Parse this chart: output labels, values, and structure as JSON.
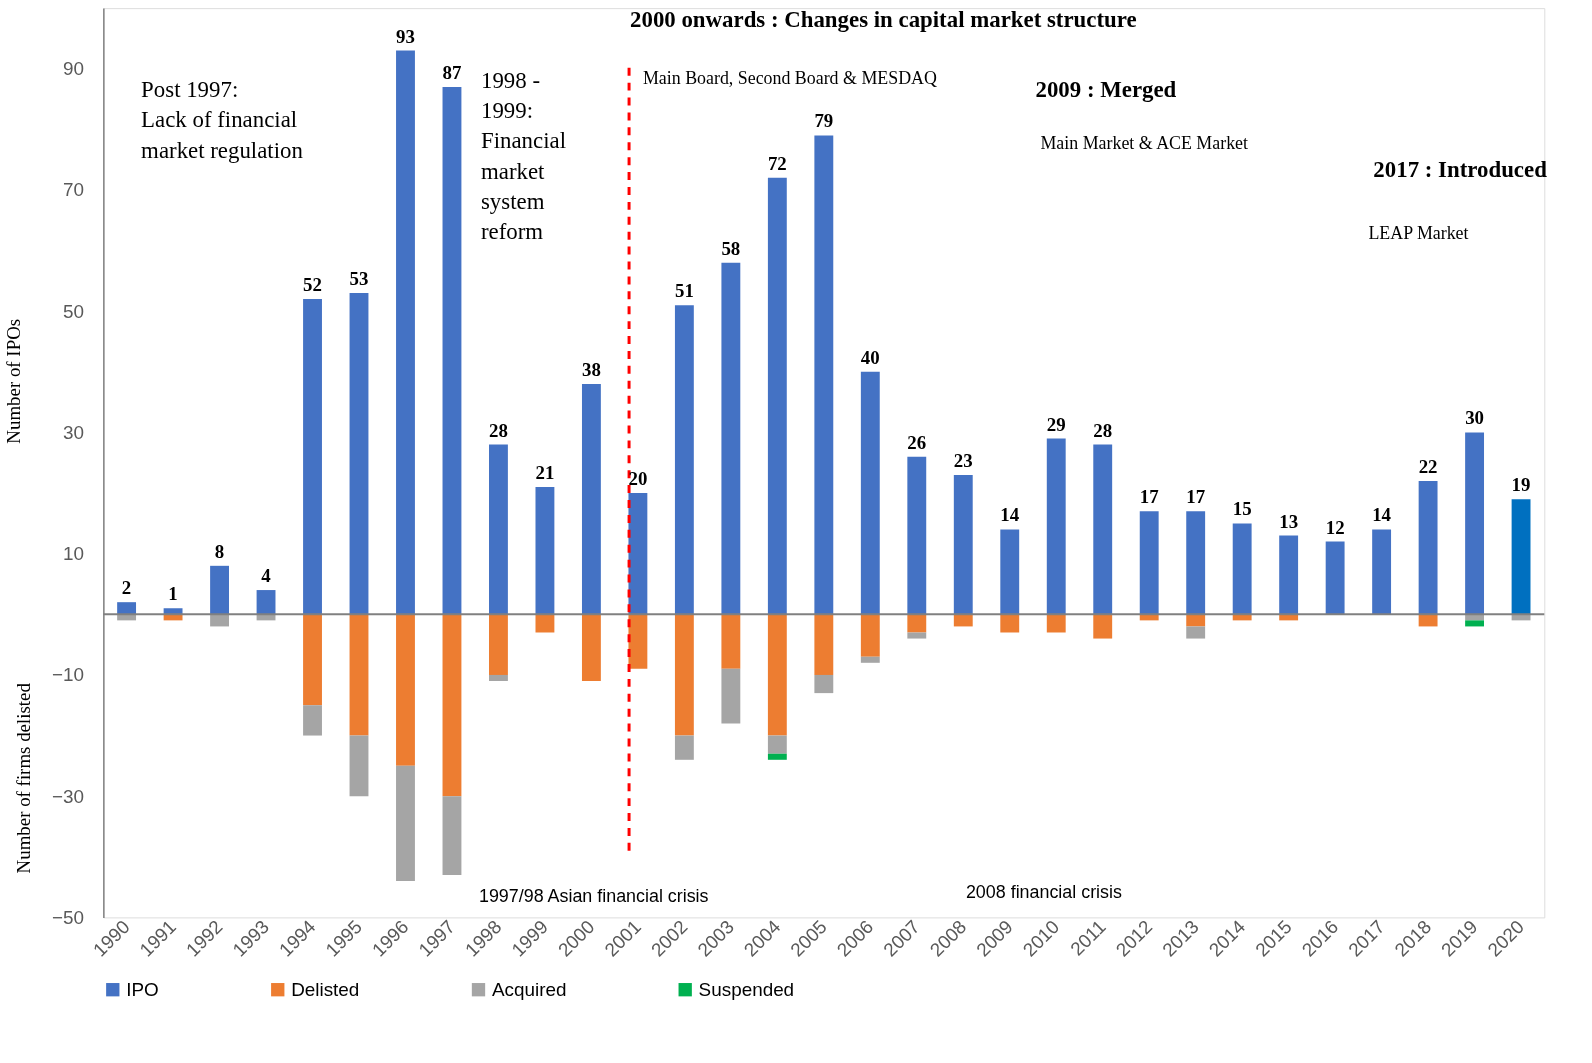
{
  "chart_data": {
    "type": "bar",
    "stacked": true,
    "legend": "bottom",
    "grid": false,
    "ylabel": "Number of IPOs",
    "categories": [
      "1990",
      "1991",
      "1992",
      "1993",
      "1994",
      "1995",
      "1996",
      "1997",
      "1998",
      "1999",
      "2000",
      "2001",
      "2002",
      "2003",
      "2004",
      "2005",
      "2006",
      "2007",
      "2008",
      "2009",
      "2010",
      "2011",
      "2012",
      "2013",
      "2014",
      "2015",
      "2016",
      "2017",
      "2018",
      "2019",
      "2020"
    ],
    "ylim": [
      -50,
      100
    ],
    "yticks": [
      -50,
      -30,
      -10,
      10,
      30,
      50,
      70,
      90
    ],
    "series": [
      {
        "name": "IPO",
        "color": "#4472c4",
        "colors": [
          "#4472c4",
          "#4472c4",
          "#4472c4",
          "#4472c4",
          "#4472c4",
          "#4472c4",
          "#4472c4",
          "#4472c4",
          "#4472c4",
          "#4472c4",
          "#4472c4",
          "#4472c4",
          "#4472c4",
          "#4472c4",
          "#4472c4",
          "#4472c4",
          "#4472c4",
          "#4472c4",
          "#4472c4",
          "#4472c4",
          "#4472c4",
          "#4472c4",
          "#4472c4",
          "#4472c4",
          "#4472c4",
          "#4472c4",
          "#4472c4",
          "#4472c4",
          "#4472c4",
          "#4472c4",
          "#0070c0"
        ],
        "values": [
          2,
          1,
          8,
          4,
          52,
          53,
          93,
          87,
          28,
          21,
          38,
          20,
          51,
          58,
          72,
          79,
          40,
          26,
          23,
          14,
          29,
          28,
          17,
          17,
          15,
          13,
          12,
          14,
          22,
          30,
          19
        ],
        "value_labels": [
          "2",
          "1",
          "8",
          "4",
          "52",
          "53",
          "93",
          "87",
          "28",
          "21",
          "38",
          "20",
          "51",
          "58",
          "72",
          "79",
          "40",
          "26",
          "23",
          "14",
          "29",
          "28",
          "17",
          "17",
          "15",
          "13",
          "12",
          "14",
          "22",
          "30",
          "19"
        ]
      },
      {
        "name": "Delisted",
        "color": "#ed7d31",
        "values": [
          null,
          -1,
          null,
          null,
          -15,
          -20,
          -25,
          -30,
          -10,
          -3,
          -11,
          -9,
          -20,
          -9,
          -20,
          -10,
          -7,
          -3,
          -2,
          -3,
          -3,
          -4,
          -1,
          -2,
          -1,
          -1,
          null,
          null,
          -2,
          null,
          null
        ]
      },
      {
        "name": "Acquired",
        "color": "#a5a5a5",
        "values": [
          -1,
          null,
          -2,
          -1,
          -5,
          -10,
          -19,
          -13,
          -1,
          null,
          null,
          null,
          -4,
          -9,
          -3,
          -3,
          -1,
          -1,
          null,
          null,
          null,
          null,
          null,
          -2,
          null,
          null,
          null,
          null,
          null,
          -1,
          -1
        ]
      },
      {
        "name": "Suspended",
        "color": "#00b050",
        "values": [
          null,
          null,
          null,
          null,
          null,
          null,
          null,
          null,
          null,
          null,
          null,
          null,
          null,
          null,
          -1,
          null,
          null,
          null,
          null,
          null,
          null,
          null,
          null,
          null,
          null,
          null,
          null,
          null,
          null,
          -1,
          null
        ]
      }
    ],
    "ref_lines": [
      {
        "axis": "y",
        "value": 0,
        "color": "#808080",
        "line_style": "solid"
      },
      {
        "axis": "x",
        "value": "2001",
        "color": "#ff0000",
        "line_style": "dashed"
      }
    ],
    "annotations": [
      "2000 onwards : Changes in capital market structure",
      "Main Board, Second Board & MESDAQ",
      "2009 : Merged",
      "Main Market & ACE Market",
      "2017 : Introduced",
      "LEAP Market",
      "Post 1997:\nLack of financial\nmarket regulation",
      "1998 -\n1999:\nFinancial\nmarket\nsystem\nreform",
      "1997/98 Asian financial crisis",
      "2008 financial crisis",
      "Number of firms delisted"
    ]
  }
}
